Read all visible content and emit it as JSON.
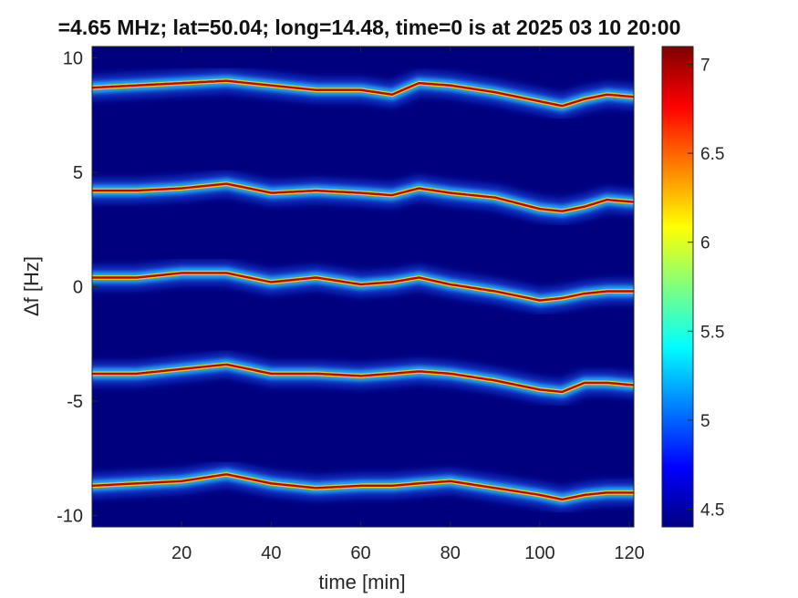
{
  "chart_data": {
    "type": "heatmap",
    "title": "=4.65 MHz;  lat=50.04; long=14.48, time=0 is at 2025 03 10 20:00",
    "xlabel": "time [min]",
    "ylabel": "Δf [Hz]",
    "xlim": [
      0,
      121
    ],
    "ylim": [
      -10.5,
      10.5
    ],
    "x_ticks": [
      20,
      40,
      60,
      80,
      100,
      120
    ],
    "y_ticks": [
      -10,
      -5,
      0,
      5,
      10
    ],
    "x_tick_labels": [
      "20",
      "40",
      "60",
      "80",
      "100",
      "120"
    ],
    "y_tick_labels": [
      "-10",
      "-5",
      "0",
      "5",
      "10"
    ],
    "colorbar": {
      "colormap": "jet",
      "range": [
        4.4,
        7.1
      ],
      "ticks": [
        4.5,
        5,
        5.5,
        6,
        6.5,
        7
      ],
      "tick_labels": [
        "4.5",
        "5",
        "5.5",
        "6",
        "6.5",
        "7"
      ]
    },
    "background_color": "#00007F",
    "series": [
      {
        "x": [
          0,
          10,
          20,
          30,
          40,
          50,
          60,
          67,
          73,
          80,
          90,
          100,
          105,
          110,
          115,
          121
        ],
        "y": [
          8.7,
          8.8,
          8.9,
          9.0,
          8.8,
          8.6,
          8.6,
          8.4,
          8.9,
          8.8,
          8.5,
          8.1,
          7.9,
          8.2,
          8.4,
          8.3
        ]
      },
      {
        "x": [
          0,
          10,
          20,
          30,
          40,
          50,
          60,
          67,
          73,
          80,
          90,
          100,
          105,
          110,
          115,
          121
        ],
        "y": [
          4.2,
          4.2,
          4.3,
          4.5,
          4.1,
          4.2,
          4.1,
          4.0,
          4.3,
          4.1,
          3.9,
          3.4,
          3.3,
          3.5,
          3.8,
          3.7
        ]
      },
      {
        "x": [
          0,
          10,
          20,
          30,
          40,
          50,
          60,
          67,
          73,
          80,
          90,
          100,
          105,
          110,
          115,
          121
        ],
        "y": [
          0.4,
          0.4,
          0.6,
          0.6,
          0.2,
          0.4,
          0.1,
          0.2,
          0.4,
          0.1,
          -0.2,
          -0.6,
          -0.5,
          -0.3,
          -0.2,
          -0.2
        ]
      },
      {
        "x": [
          0,
          10,
          20,
          30,
          40,
          50,
          60,
          67,
          73,
          80,
          90,
          100,
          105,
          110,
          115,
          121
        ],
        "y": [
          -3.8,
          -3.8,
          -3.6,
          -3.4,
          -3.8,
          -3.8,
          -3.9,
          -3.8,
          -3.7,
          -3.8,
          -4.1,
          -4.5,
          -4.6,
          -4.2,
          -4.2,
          -4.3
        ]
      },
      {
        "x": [
          0,
          10,
          20,
          30,
          40,
          50,
          60,
          67,
          73,
          80,
          90,
          100,
          105,
          110,
          115,
          121
        ],
        "y": [
          -8.7,
          -8.6,
          -8.5,
          -8.2,
          -8.6,
          -8.8,
          -8.7,
          -8.7,
          -8.6,
          -8.5,
          -8.8,
          -9.1,
          -9.3,
          -9.1,
          -9.0,
          -9.0
        ]
      }
    ],
    "grid": false,
    "legend": "none"
  }
}
